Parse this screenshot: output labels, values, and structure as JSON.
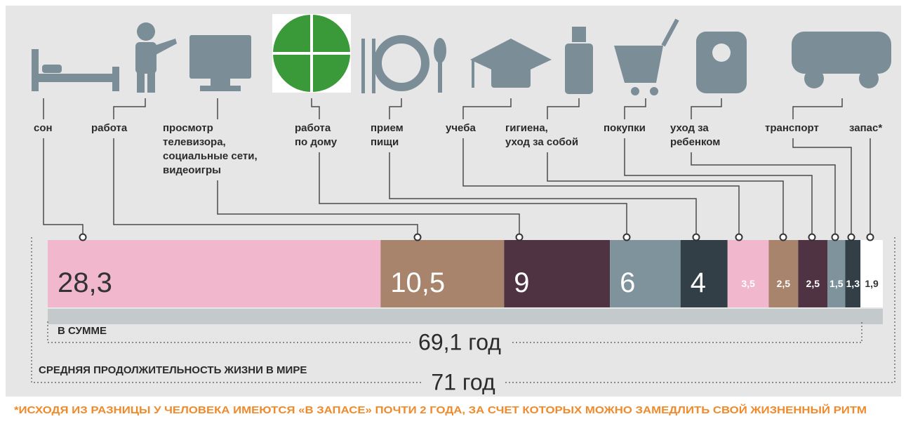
{
  "chart_data": {
    "type": "stacked-bar",
    "categories": [
      [
        "сон"
      ],
      [
        "работа"
      ],
      [
        "просмотр",
        "телевизора,",
        "социальные сети,",
        "видеоигры"
      ],
      [
        "работа",
        "по дому"
      ],
      [
        "прием",
        "пищи"
      ],
      [
        "учеба"
      ],
      [
        "гигиена,",
        "уход за собой"
      ],
      [
        "покупки"
      ],
      [
        "уход за",
        "ребенком"
      ],
      [
        "транспорт"
      ],
      [
        "запас*"
      ]
    ],
    "values": [
      28.3,
      10.5,
      9,
      6,
      4,
      3.5,
      2.5,
      2.5,
      1.5,
      1.3,
      1.9
    ],
    "value_labels": [
      "28,3",
      "10,5",
      "9",
      "6",
      "4",
      "3,5",
      "2,5",
      "2,5",
      "1,5",
      "1,3",
      "1,9"
    ],
    "colors": [
      "#f0b7cd",
      "#a7846b",
      "#4f3342",
      "#7f939d",
      "#333f47",
      "#f0b7cd",
      "#a7846b",
      "#4f3342",
      "#7f939d",
      "#333f47",
      "#ffffff"
    ],
    "label_colors": [
      "#333333",
      "#ffffff",
      "#ffffff",
      "#ffffff",
      "#ffffff",
      "#ffffff",
      "#ffffff",
      "#ffffff",
      "#ffffff",
      "#ffffff",
      "#333333"
    ],
    "annotations": {
      "sum_label": "В СУММЕ",
      "sum_value": "69,1 год",
      "life_label": "СРЕДНЯЯ ПРОДОЛЖИТЕЛЬНОСТЬ ЖИЗНИ В МИРЕ",
      "life_value": "71 год",
      "footnote": "*ИСХОДЯ ИЗ РАЗНИЦЫ У ЧЕЛОВЕКА ИМЕЮТСЯ «В ЗАПАСЕ» ПОЧТИ 2 ГОДА, ЗА СЧЕТ КОТОРЫХ МОЖНО ЗАМЕДЛИТЬ СВОЙ ЖИЗНЕННЫЙ РИТМ"
    }
  }
}
